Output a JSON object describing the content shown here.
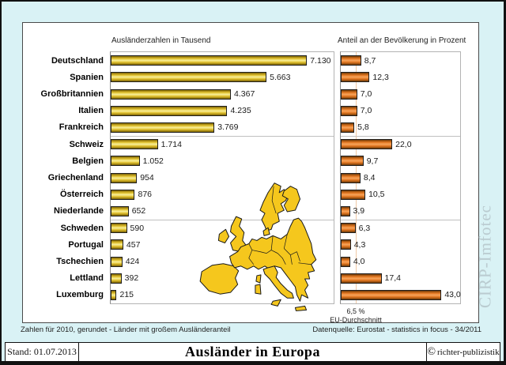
{
  "header": {
    "left_chart_title": "Ausländerzahlen in Tausend",
    "right_chart_title": "Anteil an der Bevölkerung in Prozent"
  },
  "chart_data": [
    {
      "type": "bar",
      "orientation": "horizontal",
      "title": "Ausländerzahlen in Tausend",
      "categories": [
        "Deutschland",
        "Spanien",
        "Großbritannien",
        "Italien",
        "Frankreich",
        "Schweiz",
        "Belgien",
        "Griechenland",
        "Österreich",
        "Niederlande",
        "Schweden",
        "Portugal",
        "Tschechien",
        "Lettland",
        "Luxemburg"
      ],
      "values": [
        7130,
        5663,
        4367,
        4235,
        3769,
        1714,
        1052,
        954,
        876,
        652,
        590,
        457,
        424,
        392,
        215
      ],
      "value_labels": [
        "7.130",
        "5.663",
        "4.367",
        "4.235",
        "3.769",
        "1.714",
        "1.052",
        "954",
        "876",
        "652",
        "590",
        "457",
        "424",
        "392",
        "215"
      ],
      "xlim": [
        0,
        8100
      ],
      "bar_color": "#e8c832",
      "grid": "group-separators",
      "group_separators_after": [
        4,
        9
      ],
      "legend": "none"
    },
    {
      "type": "bar",
      "orientation": "horizontal",
      "title": "Anteil an der Bevölkerung in Prozent",
      "categories": [
        "Deutschland",
        "Spanien",
        "Großbritannien",
        "Italien",
        "Frankreich",
        "Schweiz",
        "Belgien",
        "Griechenland",
        "Österreich",
        "Niederlande",
        "Schweden",
        "Portugal",
        "Tschechien",
        "Lettland",
        "Luxemburg"
      ],
      "values": [
        8.7,
        12.3,
        7.0,
        7.0,
        5.8,
        22.0,
        9.7,
        8.4,
        10.5,
        3.9,
        6.3,
        4.3,
        4.0,
        17.4,
        43.0
      ],
      "value_labels": [
        "8,7",
        "12,3",
        "7,0",
        "7,0",
        "5,8",
        "22,0",
        "9,7",
        "8,4",
        "10,5",
        "3,9",
        "6,3",
        "4,3",
        "4,0",
        "17,4",
        "43,0"
      ],
      "xlim": [
        0,
        51
      ],
      "bar_color": "#e87d28",
      "grid": "group-separators",
      "group_separators_after": [
        4,
        9
      ],
      "legend": "none",
      "reference_line": {
        "value": 6.5,
        "label_line1": "6,5 %",
        "label_line2": "EU-Durchschnitt",
        "color": "#f0c9a6"
      }
    }
  ],
  "footnotes": {
    "left": "Zahlen für 2010, gerundet - Länder mit großem Ausländeranteil",
    "right": "Datenquelle: Eurostat - statistics in focus - 34/2011"
  },
  "footer": {
    "stand": "Stand: 01.07.2013",
    "title": "Ausländer in Europa",
    "copyright_symbol": "©",
    "copyright_text": "richter-publizistik"
  },
  "watermark": "CIRP-Imfotec",
  "colors": {
    "background": "#d9f2f5",
    "panel": "#ffffff",
    "bar_yellow": "#e8c832",
    "bar_orange": "#e87d28",
    "map_fill": "#f5c71d",
    "reference_line": "#f0c9a6"
  }
}
